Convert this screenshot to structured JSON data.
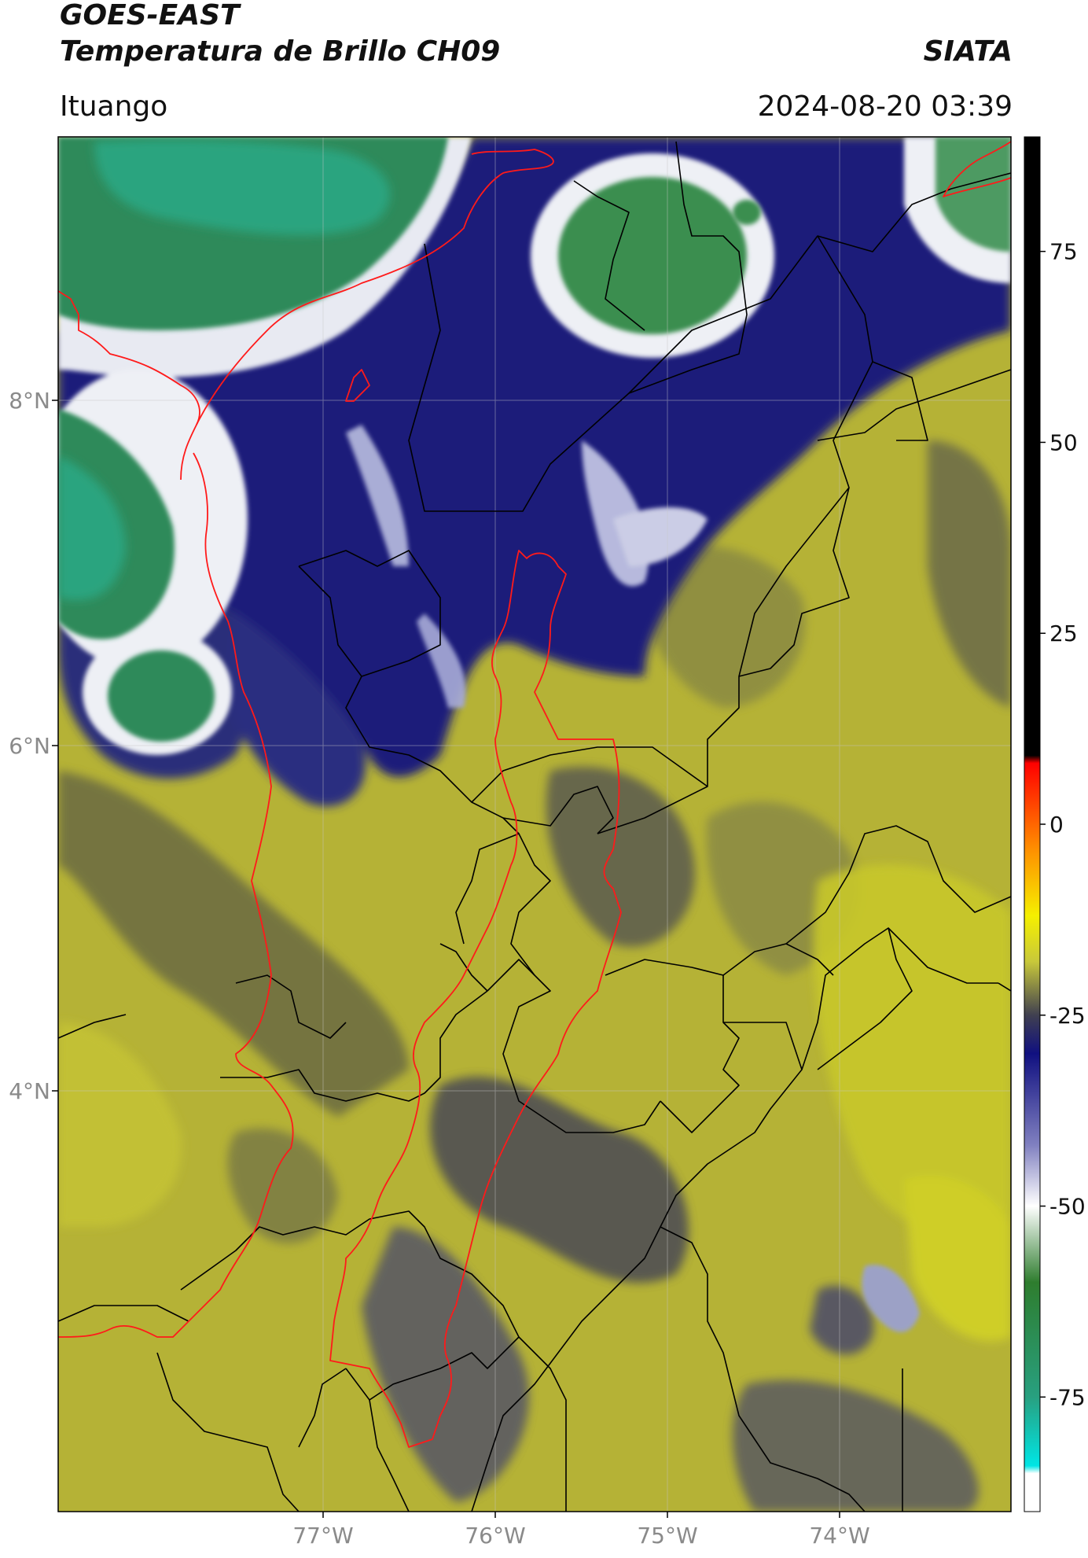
{
  "header": {
    "satellite": "GOES-EAST",
    "product": "Temperatura de Brillo CH09",
    "brand": "SIATA",
    "region": "Ituango",
    "timestamp": "2024-08-20 03:39"
  },
  "map": {
    "lat_labels": [
      "8°N",
      "6°N",
      "4°N"
    ],
    "lon_labels": [
      "77°W",
      "76°W",
      "75°W",
      "74°W"
    ],
    "colorbar": {
      "unit_range": [
        -90,
        90
      ],
      "tick_labels": [
        "75",
        "50",
        "25",
        "0",
        "-25",
        "-50",
        "-75"
      ],
      "stops": [
        {
          "v": 90,
          "c": "#000000"
        },
        {
          "v": 9,
          "c": "#000000"
        },
        {
          "v": 8,
          "c": "#ff0000"
        },
        {
          "v": -3,
          "c": "#ff8c00"
        },
        {
          "v": -12,
          "c": "#f5f000"
        },
        {
          "v": -18,
          "c": "#c8c83a"
        },
        {
          "v": -25,
          "c": "#404050"
        },
        {
          "v": -30,
          "c": "#101080"
        },
        {
          "v": -42,
          "c": "#8080c0"
        },
        {
          "v": -50,
          "c": "#ffffff"
        },
        {
          "v": -60,
          "c": "#2e7d2e"
        },
        {
          "v": -75,
          "c": "#28a080"
        },
        {
          "v": -84,
          "c": "#00e5e5"
        },
        {
          "v": -85,
          "c": "#ffffff"
        },
        {
          "v": -90,
          "c": "#ffffff"
        }
      ]
    },
    "colors": {
      "border_country": "#000000",
      "border_region": "#ff0000",
      "olive": "#b9b736",
      "dark_olive": "#55553e",
      "navy": "#1b1f7e",
      "cloud_green": "#2f8a5a",
      "cyan": "#26b59a"
    }
  }
}
